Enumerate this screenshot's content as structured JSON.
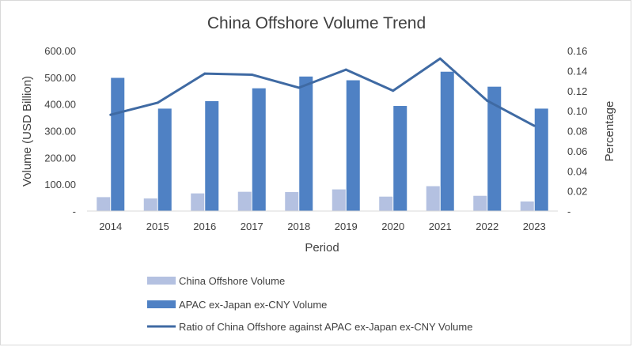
{
  "chart_data": {
    "type": "bar",
    "title": "China Offshore Volume Trend",
    "xlabel": "Period",
    "ylabel": "Volume (USD Billion)",
    "y2label": "Percentage",
    "categories": [
      "2014",
      "2015",
      "2016",
      "2017",
      "2018",
      "2019",
      "2020",
      "2021",
      "2022",
      "2023"
    ],
    "ylim": [
      0,
      600
    ],
    "y_ticks": [
      "-",
      "100.00",
      "200.00",
      "300.00",
      "400.00",
      "500.00",
      "600.00"
    ],
    "y2lim": [
      0,
      0.16
    ],
    "y2_ticks": [
      "-",
      "0.02",
      "0.04",
      "0.06",
      "0.08",
      "0.10",
      "0.12",
      "0.14",
      "0.16"
    ],
    "grid": false,
    "legend_position": "bottom",
    "series": [
      {
        "name": "China Offshore Volume",
        "type": "bar",
        "axis": "left",
        "color": "#b4c1e1",
        "values": [
          52,
          47,
          66,
          72,
          71,
          81,
          54,
          93,
          57,
          36
        ]
      },
      {
        "name": "APAC ex-Japan ex-CNY Volume",
        "type": "bar",
        "axis": "left",
        "color": "#4f81c4",
        "values": [
          498,
          383,
          411,
          459,
          503,
          489,
          393,
          521,
          465,
          383
        ]
      },
      {
        "name": "Ratio of China Offshore against APAC ex-Japan ex-CNY Volume",
        "type": "line",
        "axis": "right",
        "color": "#3f6aa3",
        "values": [
          0.096,
          0.108,
          0.137,
          0.136,
          0.123,
          0.141,
          0.12,
          0.152,
          0.11,
          0.085
        ]
      }
    ]
  }
}
